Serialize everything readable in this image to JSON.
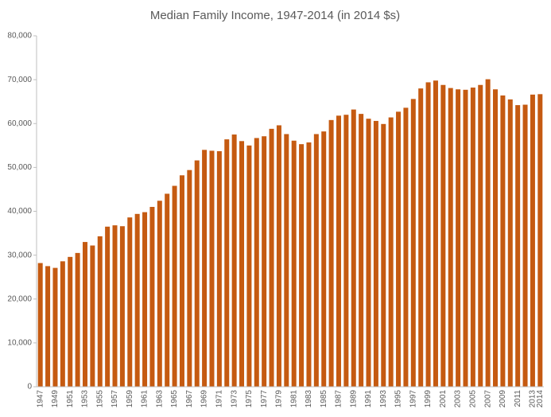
{
  "chart_data": {
    "type": "bar",
    "title": "Median Family Income, 1947-2014 (in 2014 $s)",
    "categories": [
      "1947",
      null,
      "1949",
      null,
      "1951",
      null,
      "1953",
      null,
      "1955",
      null,
      "1957",
      null,
      "1959",
      null,
      "1961",
      null,
      "1963",
      null,
      "1965",
      null,
      "1967",
      null,
      "1969",
      null,
      "1971",
      null,
      "1973",
      null,
      "1975",
      null,
      "1977",
      null,
      "1979",
      null,
      "1981",
      null,
      "1983",
      null,
      "1985",
      null,
      "1987",
      null,
      "1989",
      null,
      "1991",
      null,
      "1993",
      null,
      "1995",
      null,
      "1997",
      null,
      "1999",
      null,
      "2001",
      null,
      "2003",
      null,
      "2005",
      null,
      "2007",
      null,
      "2009",
      null,
      "2011",
      null,
      "2013",
      "2014"
    ],
    "values": [
      28200,
      27500,
      27100,
      28600,
      29600,
      30500,
      33000,
      32200,
      34300,
      36500,
      36800,
      36600,
      38600,
      39400,
      39800,
      41000,
      42400,
      44000,
      45800,
      48200,
      49400,
      51600,
      54000,
      53800,
      53700,
      56400,
      57500,
      56000,
      55000,
      56700,
      57100,
      58800,
      59600,
      57600,
      56100,
      55300,
      55700,
      57600,
      58200,
      60800,
      61800,
      62000,
      63200,
      62200,
      61100,
      60600,
      59900,
      61400,
      62700,
      63600,
      65600,
      68000,
      69400,
      69800,
      68800,
      68100,
      67800,
      67700,
      68200,
      68800,
      70100,
      67800,
      66400,
      65500,
      64200,
      64300,
      66600,
      66700
    ],
    "color": "#c55a11",
    "ylim": [
      0,
      80000
    ],
    "yticks": [
      0,
      {
        "value": 10000,
        "label": "10,000"
      },
      {
        "value": 20000,
        "label": "20,000"
      },
      {
        "value": 30000,
        "label": "30,000"
      },
      {
        "value": 40000,
        "label": "40,000"
      },
      {
        "value": 50000,
        "label": "50,000"
      },
      {
        "value": 60000,
        "label": "60,000"
      },
      {
        "value": 70000,
        "label": "70,000"
      },
      {
        "value": 80000,
        "label": "80,000"
      }
    ],
    "grid": false
  }
}
